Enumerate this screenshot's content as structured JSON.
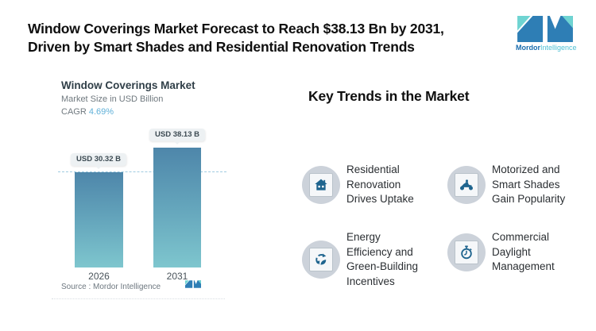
{
  "header": {
    "title_line1": "Window Coverings Market Forecast to Reach $38.13 Bn by 2031,",
    "title_line2": "Driven by Smart Shades and Residential Renovation Trends"
  },
  "logo": {
    "name_primary": "Mordor",
    "name_secondary": "Intelligence",
    "colors": {
      "blue": "#2e7eb5",
      "teal": "#6fd4d2"
    }
  },
  "chart": {
    "title": "Window Coverings Market",
    "subtitle": "Market Size in USD Billion",
    "cagr_label": "CAGR",
    "cagr_value": "4.69%",
    "source": "Source :  Mordor Intelligence"
  },
  "chart_data": {
    "type": "bar",
    "title": "Window Coverings Market",
    "subtitle": "Market Size in USD Billion",
    "cagr": "4.69%",
    "categories": [
      "2026",
      "2031"
    ],
    "values": [
      30.32,
      38.13
    ],
    "bar_labels": [
      "USD 30.32 B",
      "USD 38.13 B"
    ],
    "unit": "USD Billion",
    "ylim": [
      0,
      44
    ],
    "reference_line": 30.32,
    "bar_color_top": "#4e86aa",
    "bar_color_bottom": "#7ec6ce",
    "legend": "none",
    "grid": "off"
  },
  "trends": {
    "heading": "Key Trends in the Market",
    "items": [
      {
        "icon": "home-icon",
        "label": "Residential Renovation Drives Uptake"
      },
      {
        "icon": "motorcycle-icon",
        "label": "Motorized and Smart Shades Gain Popularity"
      },
      {
        "icon": "recycle-leaf-icon",
        "label": "Energy Efficiency and Green-Building Incentives"
      },
      {
        "icon": "stopwatch-icon",
        "label": "Commercial Daylight Management"
      }
    ]
  }
}
